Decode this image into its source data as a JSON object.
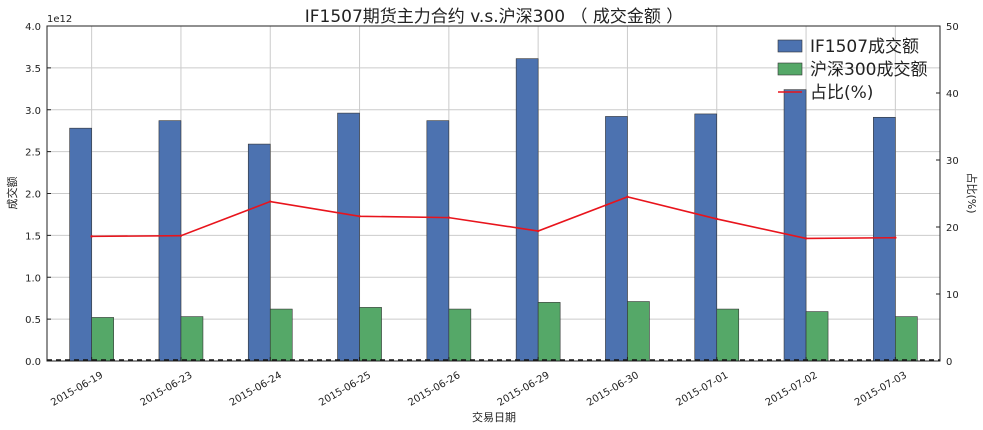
{
  "chart_data": {
    "type": "bar",
    "title": "IF1507期货主力合约 v.s.沪深300 （ 成交金额 ）",
    "xlabel": "交易日期",
    "ylabel": "成交额",
    "y2label": "占比(%)",
    "y_offset_label": "1e12",
    "categories": [
      "2015-06-19",
      "2015-06-23",
      "2015-06-24",
      "2015-06-25",
      "2015-06-26",
      "2015-06-29",
      "2015-06-30",
      "2015-07-01",
      "2015-07-02",
      "2015-07-03"
    ],
    "ylim": [
      0,
      4.0
    ],
    "yticks": [
      "0.0",
      "0.5",
      "1.0",
      "1.5",
      "2.0",
      "2.5",
      "3.0",
      "3.5",
      "4.0"
    ],
    "y2lim": [
      0,
      50
    ],
    "y2ticks": [
      "0",
      "10",
      "20",
      "30",
      "40",
      "50"
    ],
    "grid": true,
    "legend_position": "top-right",
    "series": [
      {
        "name": "IF1507成交额",
        "kind": "bar",
        "axis": "left",
        "color": "#4c72b0",
        "values": [
          2.78,
          2.87,
          2.59,
          2.96,
          2.87,
          3.61,
          2.92,
          2.95,
          3.24,
          2.91
        ]
      },
      {
        "name": "沪深300成交额",
        "kind": "bar",
        "axis": "left",
        "color": "#55a868",
        "values": [
          0.52,
          0.53,
          0.62,
          0.64,
          0.62,
          0.7,
          0.71,
          0.62,
          0.59,
          0.53
        ]
      },
      {
        "name": "占比(%)",
        "kind": "line",
        "axis": "right",
        "color": "#e8141c",
        "values": [
          18.6,
          18.7,
          23.8,
          21.6,
          21.4,
          19.4,
          24.5,
          21.2,
          18.3,
          18.4
        ]
      }
    ]
  }
}
